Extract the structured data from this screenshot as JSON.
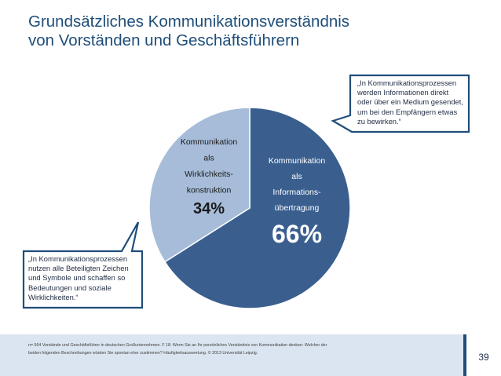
{
  "slide": {
    "title_lines": [
      "Grundsätzliches Kommunikationsverständnis",
      "von Vorständen und Geschäftsführern"
    ],
    "page_number": "39"
  },
  "chart_data": {
    "type": "pie",
    "title": "Grundsätzliches Kommunikationsverständnis von Vorständen und Geschäftsführern",
    "slices": [
      {
        "label": "Kommunikation als Informations- übertragung",
        "label_lines": [
          "Kommunikation",
          "als",
          "Informations-",
          "übertragung"
        ],
        "value": 66,
        "display": "66%",
        "color": "#3a5f8f"
      },
      {
        "label": "Kommunikation als Wirklichkeits- konstruktion",
        "label_lines": [
          "Kommunikation",
          "als",
          "Wirklichkeits-",
          "konstruktion"
        ],
        "value": 34,
        "display": "34%",
        "color": "#a6bcd9"
      }
    ]
  },
  "callouts": {
    "right_lines": [
      "„In Kommunikationsprozessen",
      "werden Informationen direkt",
      "oder über ein Medium gesendet,",
      "um bei den Empfängern etwas",
      "zu bewirken.“"
    ],
    "left_lines": [
      "„In Kommunikationsprozessen",
      "nutzen alle Beteiligten Zeichen",
      "und Symbole und schaffen so",
      "Bedeutungen und soziale",
      "Wirklichkeiten.“"
    ]
  },
  "footnote_lines": [
    "n= 564 Vorstände und Geschäftsführer in deutschen Großunternehmen. F 18: Wenn Sie an Ihr persönliches Verständnis von Kommunikation denken: Welcher der",
    "beiden folgenden Beschreibungen würden Sie spontan eher zustimmen? Häufigkeitsauswertung. © 2013 Universität Leipzig."
  ],
  "colors": {
    "title": "#1f4e79",
    "slice_dark": "#3a5f8f",
    "slice_light": "#a6bcd9",
    "slice_separator": "#ffffff",
    "label_on_dark": "#ffffff",
    "label_on_light": "#1a1a1a",
    "callout_border": "#1f4e79",
    "footer_bg": "#dbe5f1"
  }
}
